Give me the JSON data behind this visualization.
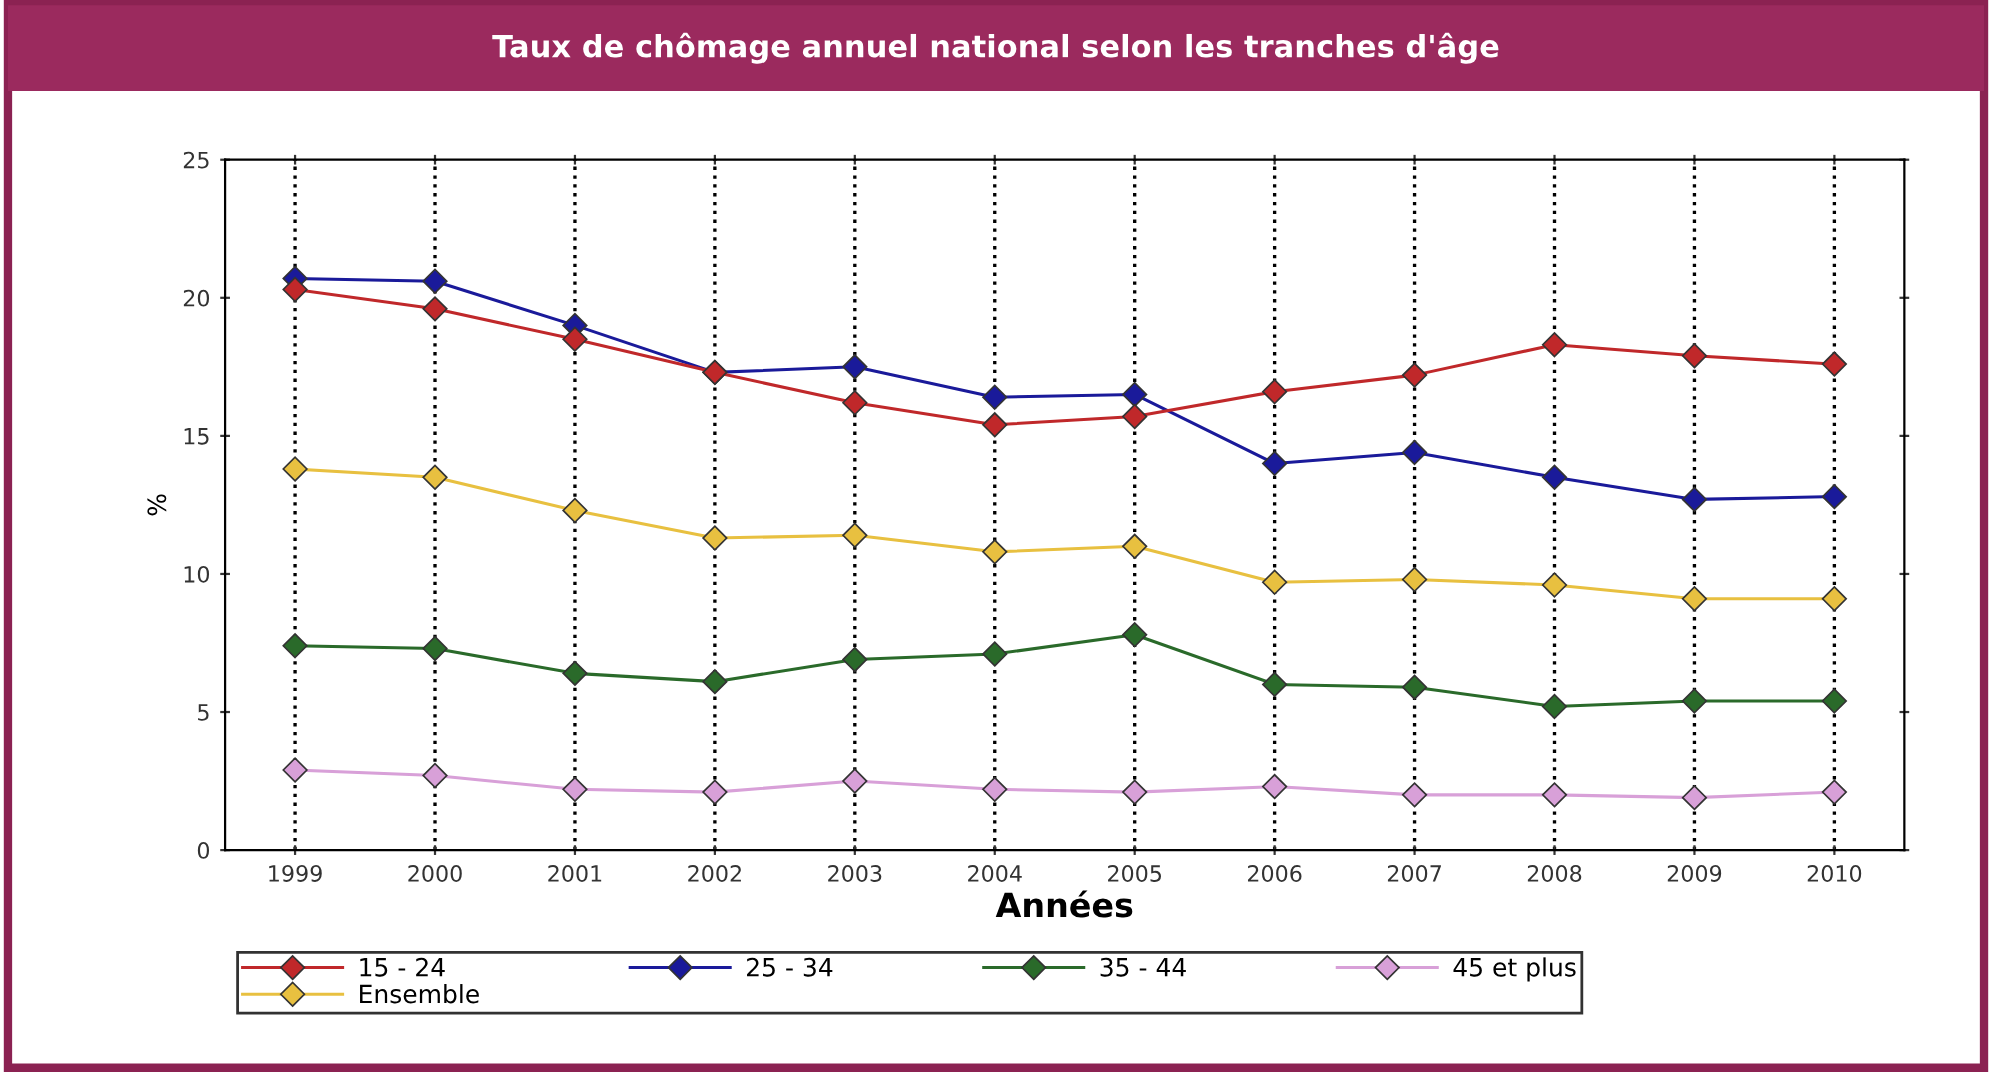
{
  "chart_data": {
    "type": "line",
    "title": "Taux de chômage annuel national selon les tranches d'âge",
    "xlabel": "Années",
    "ylabel": "%",
    "categories": [
      "1999",
      "2000",
      "2001",
      "2002",
      "2003",
      "2004",
      "2005",
      "2006",
      "2007",
      "2008",
      "2009",
      "2010"
    ],
    "series": [
      {
        "name": "15 - 24",
        "color": "#c0282a",
        "values": [
          20.3,
          19.6,
          18.5,
          17.3,
          16.2,
          15.4,
          15.7,
          16.6,
          17.2,
          18.3,
          17.9,
          17.6
        ]
      },
      {
        "name": "25 - 34",
        "color": "#1a1a9a",
        "values": [
          20.7,
          20.6,
          19.0,
          17.3,
          17.5,
          16.4,
          16.5,
          14.0,
          14.4,
          13.5,
          12.7,
          12.8
        ]
      },
      {
        "name": "35 - 44",
        "color": "#2a6a2a",
        "values": [
          7.4,
          7.3,
          6.4,
          6.1,
          6.9,
          7.1,
          7.8,
          6.0,
          5.9,
          5.2,
          5.4,
          5.4
        ]
      },
      {
        "name": "45 et plus",
        "color": "#d8a0d8",
        "values": [
          2.9,
          2.7,
          2.2,
          2.1,
          2.5,
          2.2,
          2.1,
          2.3,
          2.0,
          2.0,
          1.9,
          2.1
        ]
      },
      {
        "name": "Ensemble",
        "color": "#e8c040",
        "values": [
          13.8,
          13.5,
          12.3,
          11.3,
          11.4,
          10.8,
          11.0,
          9.7,
          9.8,
          9.6,
          9.1,
          9.1
        ]
      }
    ],
    "ylim": [
      0,
      25
    ],
    "yticks": [
      0,
      5,
      10,
      15,
      20,
      25
    ],
    "grid": "x",
    "legend": "bottom",
    "marker": "diamond",
    "line_style": "solid"
  }
}
